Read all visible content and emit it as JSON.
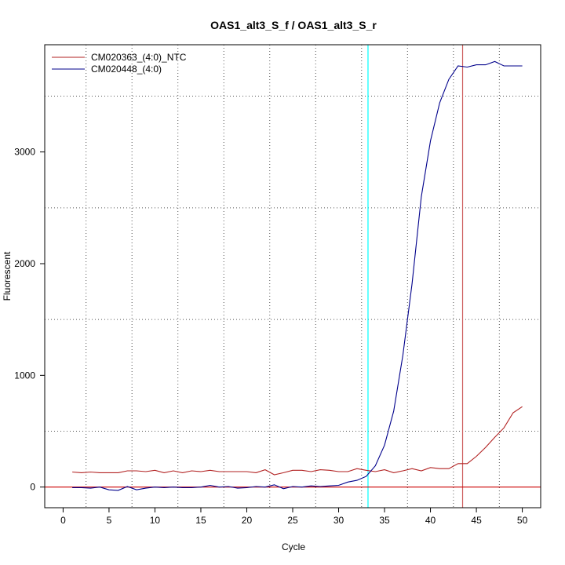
{
  "chart_data": {
    "type": "line",
    "title": "OAS1_alt3_S_f / OAS1_alt3_S_r",
    "xlabel": "Cycle",
    "ylabel": "Fluorescent",
    "xlim": [
      -2,
      52
    ],
    "ylim": [
      -185,
      3960
    ],
    "x_ticks": [
      0,
      5,
      10,
      15,
      20,
      25,
      30,
      35,
      40,
      45,
      50
    ],
    "y_ticks": [
      0,
      1000,
      2000,
      3000
    ],
    "grid": true,
    "legend_position": "top-left",
    "series": [
      {
        "name": "CM020363_(4:0)_NTC",
        "color": "#b22222",
        "x": [
          1,
          2,
          3,
          4,
          5,
          6,
          7,
          8,
          9,
          10,
          11,
          12,
          13,
          14,
          15,
          16,
          17,
          18,
          19,
          20,
          21,
          22,
          23,
          24,
          25,
          26,
          27,
          28,
          29,
          30,
          31,
          32,
          33,
          34,
          35,
          36,
          37,
          38,
          39,
          40,
          41,
          42,
          43,
          44,
          45,
          46,
          47,
          48,
          49,
          50
        ],
        "y": [
          135,
          128,
          135,
          128,
          128,
          128,
          145,
          145,
          138,
          150,
          128,
          145,
          128,
          145,
          138,
          150,
          138,
          138,
          138,
          138,
          128,
          155,
          110,
          128,
          150,
          150,
          138,
          155,
          150,
          138,
          138,
          165,
          150,
          138,
          155,
          128,
          145,
          165,
          145,
          175,
          165,
          165,
          210,
          210,
          275,
          355,
          445,
          530,
          665,
          720
        ]
      },
      {
        "name": "CM020448_(4:0)",
        "color": "#00008b",
        "x": [
          1,
          2,
          3,
          4,
          5,
          6,
          7,
          8,
          9,
          10,
          11,
          12,
          13,
          14,
          15,
          16,
          17,
          18,
          19,
          20,
          21,
          22,
          23,
          24,
          25,
          26,
          27,
          28,
          29,
          30,
          31,
          32,
          33,
          34,
          35,
          36,
          37,
          38,
          39,
          40,
          41,
          42,
          43,
          44,
          45,
          46,
          47,
          48,
          49,
          50
        ],
        "y": [
          -5,
          -5,
          -10,
          0,
          -25,
          -30,
          5,
          -25,
          -10,
          0,
          -5,
          0,
          -5,
          -5,
          0,
          15,
          0,
          5,
          -10,
          -5,
          5,
          0,
          20,
          -15,
          5,
          0,
          10,
          5,
          10,
          15,
          45,
          60,
          95,
          190,
          375,
          680,
          1180,
          1820,
          2600,
          3100,
          3440,
          3650,
          3770,
          3760,
          3780,
          3780,
          3810,
          3770,
          3770,
          3770
        ]
      }
    ],
    "vlines": [
      {
        "x": 33.2,
        "color": "#00ffff"
      },
      {
        "x": 43.5,
        "color": "#cd5c5c"
      }
    ],
    "hlines": [
      {
        "y": 0,
        "color": "#cc0000"
      }
    ]
  }
}
